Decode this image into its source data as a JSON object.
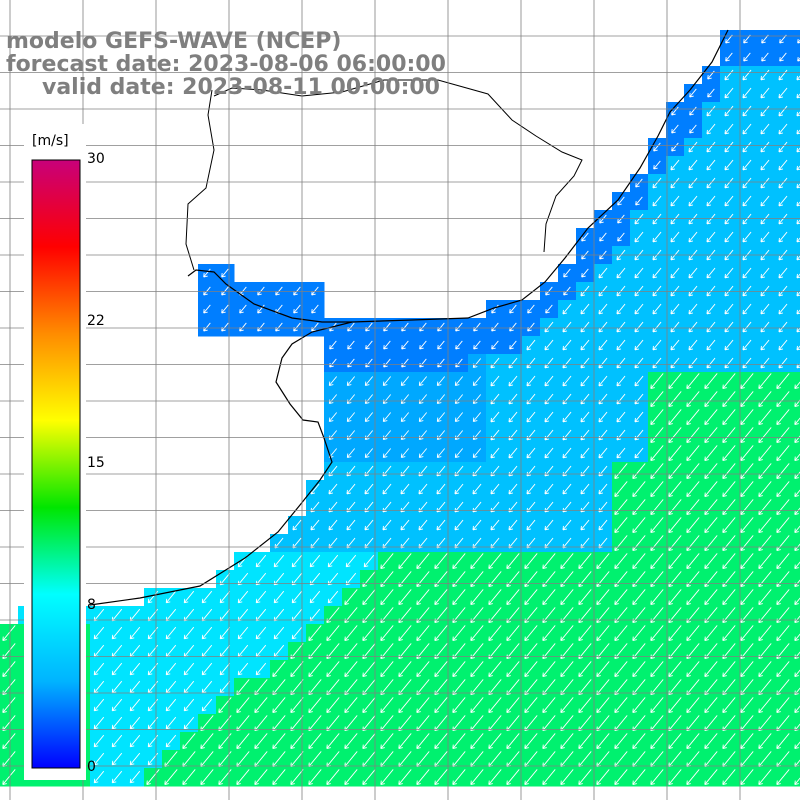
{
  "title": {
    "line1": "modelo GEFS-WAVE (NCEP)",
    "line2": "forecast date: 2023-08-06 06:00:00",
    "line3": "valid date: 2023-08-11 00:00:00"
  },
  "legend": {
    "unit": "[m/s]",
    "ticks": [
      "30",
      "22",
      "15",
      "8",
      "0"
    ],
    "tick_values": [
      30,
      22,
      15,
      8,
      0
    ],
    "range": [
      0,
      30
    ]
  },
  "chart_data": {
    "type": "heatmap",
    "variable": "wind speed with direction arrows",
    "unit": "m/s",
    "colormap": [
      "#0000ff",
      "#00b4ff",
      "#00ffff",
      "#00e600",
      "#ffff00",
      "#ff8c00",
      "#ff0000",
      "#c8007a"
    ],
    "regions": [
      {
        "zone": "nearshore bays",
        "speed": 3
      },
      {
        "zone": "northern open sea",
        "speed": 5
      },
      {
        "zone": "central open sea",
        "speed": 7
      },
      {
        "zone": "southern open sea",
        "speed": 11
      }
    ],
    "arrow_direction": "toward south-west"
  },
  "colors": {
    "land": "#ffffff",
    "coast": "#000000",
    "grid": "#808080",
    "title": "#7f7f7f"
  }
}
